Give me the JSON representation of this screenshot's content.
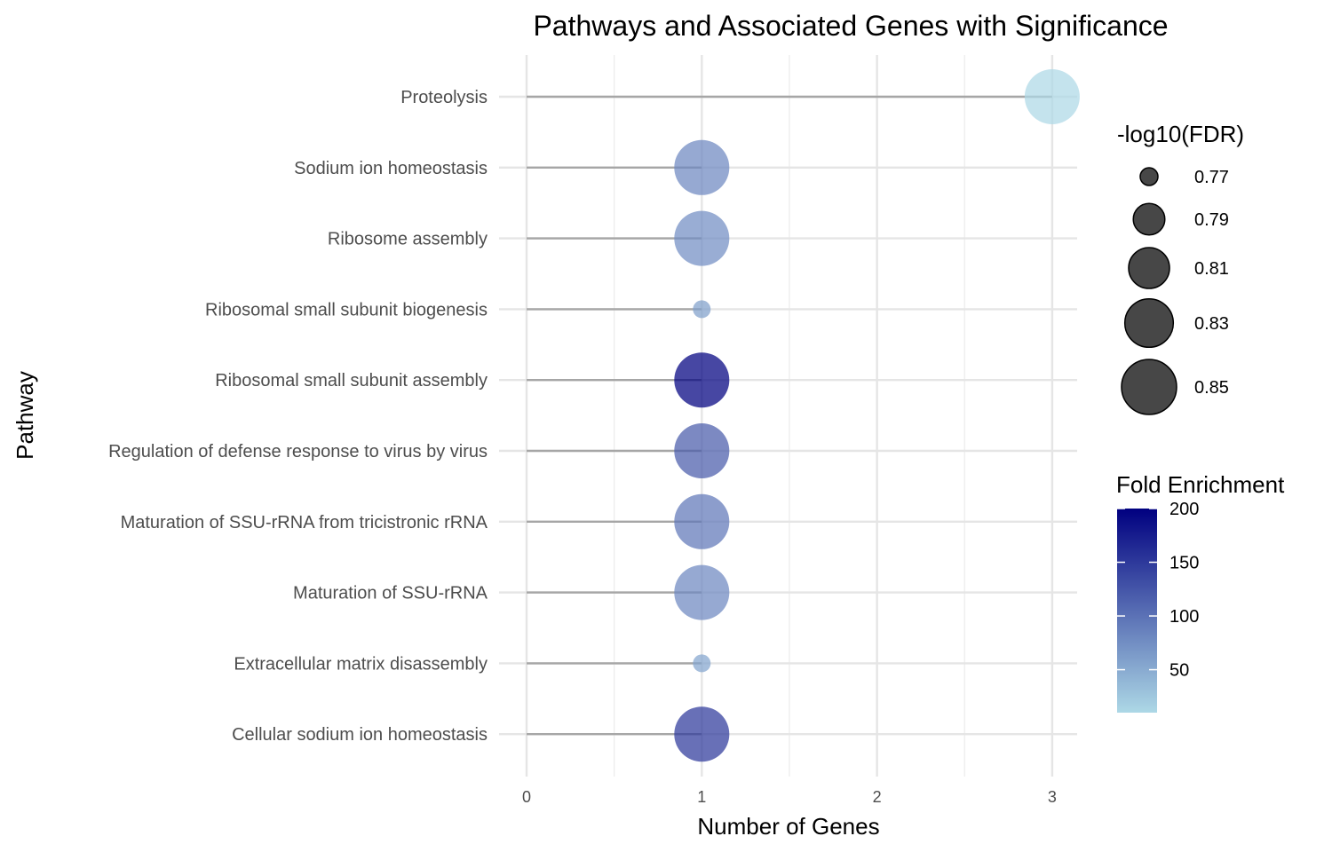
{
  "chart_data": {
    "type": "scatter",
    "title": "Pathways and Associated Genes with Significance",
    "xlabel": "Number of Genes",
    "ylabel": "Pathway",
    "xlim": [
      0,
      3
    ],
    "xticks": [
      "0",
      "1",
      "2",
      "3"
    ],
    "grid": true,
    "legend_position": "right",
    "color_low": "#ADD8E6",
    "color_high": "#000080",
    "stem_color": "#A6A6A6",
    "points": [
      {
        "pathway": "Proteolysis",
        "genes": 3,
        "neg_log10_fdr": 0.85,
        "fold_enrichment": 10
      },
      {
        "pathway": "Sodium ion homeostasis",
        "genes": 1,
        "neg_log10_fdr": 0.85,
        "fold_enrichment": 80
      },
      {
        "pathway": "Ribosome assembly",
        "genes": 1,
        "neg_log10_fdr": 0.85,
        "fold_enrichment": 75
      },
      {
        "pathway": "Ribosomal small subunit biogenesis",
        "genes": 1,
        "neg_log10_fdr": 0.77,
        "fold_enrichment": 60
      },
      {
        "pathway": "Ribosomal small subunit assembly",
        "genes": 1,
        "neg_log10_fdr": 0.85,
        "fold_enrichment": 200
      },
      {
        "pathway": "Regulation of defense response to virus by virus",
        "genes": 1,
        "neg_log10_fdr": 0.85,
        "fold_enrichment": 120
      },
      {
        "pathway": "Maturation of SSU-rRNA from tricistronic rRNA",
        "genes": 1,
        "neg_log10_fdr": 0.85,
        "fold_enrichment": 95
      },
      {
        "pathway": "Maturation of SSU-rRNA",
        "genes": 1,
        "neg_log10_fdr": 0.85,
        "fold_enrichment": 80
      },
      {
        "pathway": "Extracellular matrix disassembly",
        "genes": 1,
        "neg_log10_fdr": 0.77,
        "fold_enrichment": 55
      },
      {
        "pathway": "Cellular sodium ion homeostasis",
        "genes": 1,
        "neg_log10_fdr": 0.85,
        "fold_enrichment": 150
      }
    ],
    "size_legend": {
      "title": "-log10(FDR)",
      "entries": [
        {
          "label": "0.77",
          "value": 0.77
        },
        {
          "label": "0.79",
          "value": 0.79
        },
        {
          "label": "0.81",
          "value": 0.81
        },
        {
          "label": "0.83",
          "value": 0.83
        },
        {
          "label": "0.85",
          "value": 0.85
        }
      ]
    },
    "color_legend": {
      "title": "Fold Enrichment",
      "range": [
        10,
        200
      ],
      "ticks": [
        {
          "label": "200",
          "value": 200
        },
        {
          "label": "150",
          "value": 150
        },
        {
          "label": "100",
          "value": 100
        },
        {
          "label": "50",
          "value": 50
        }
      ]
    }
  }
}
